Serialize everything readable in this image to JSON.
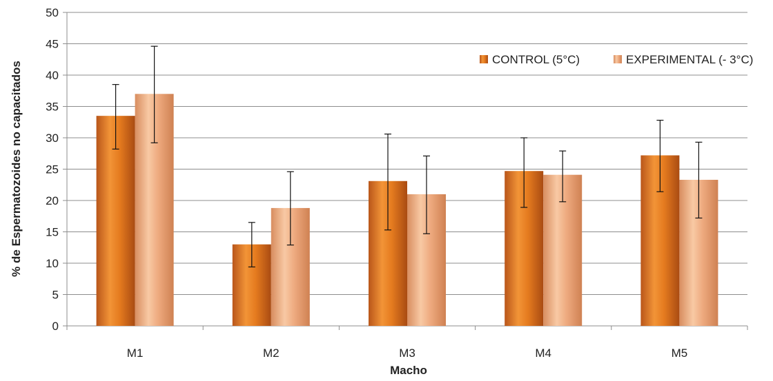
{
  "chart_data": {
    "type": "bar",
    "categories": [
      "M1",
      "M2",
      "M3",
      "M4",
      "M5"
    ],
    "series": [
      {
        "name": "CONTROL (5°C)",
        "values": [
          33.5,
          13.0,
          23.1,
          24.7,
          27.2
        ],
        "error_low": [
          28.2,
          9.4,
          15.3,
          18.9,
          21.4
        ],
        "error_high": [
          38.5,
          16.5,
          30.6,
          30.0,
          32.8
        ],
        "color": "#e57b1f"
      },
      {
        "name": "EXPERIMENTAL (- 3°C)",
        "values": [
          37.0,
          18.8,
          21.0,
          24.1,
          23.3
        ],
        "error_low": [
          29.2,
          12.9,
          14.7,
          19.8,
          17.2
        ],
        "error_high": [
          44.6,
          24.6,
          27.1,
          27.9,
          29.3
        ],
        "color": "#eeaa7f"
      }
    ],
    "xlabel": "Macho",
    "ylabel": "% de Espermatozoides no capacitados",
    "ylim": [
      0,
      50
    ],
    "yticks": [
      "0",
      "5",
      "10",
      "15",
      "20",
      "25",
      "30",
      "35",
      "40",
      "45",
      "50"
    ],
    "grid": true,
    "legend_position": "top-right"
  }
}
